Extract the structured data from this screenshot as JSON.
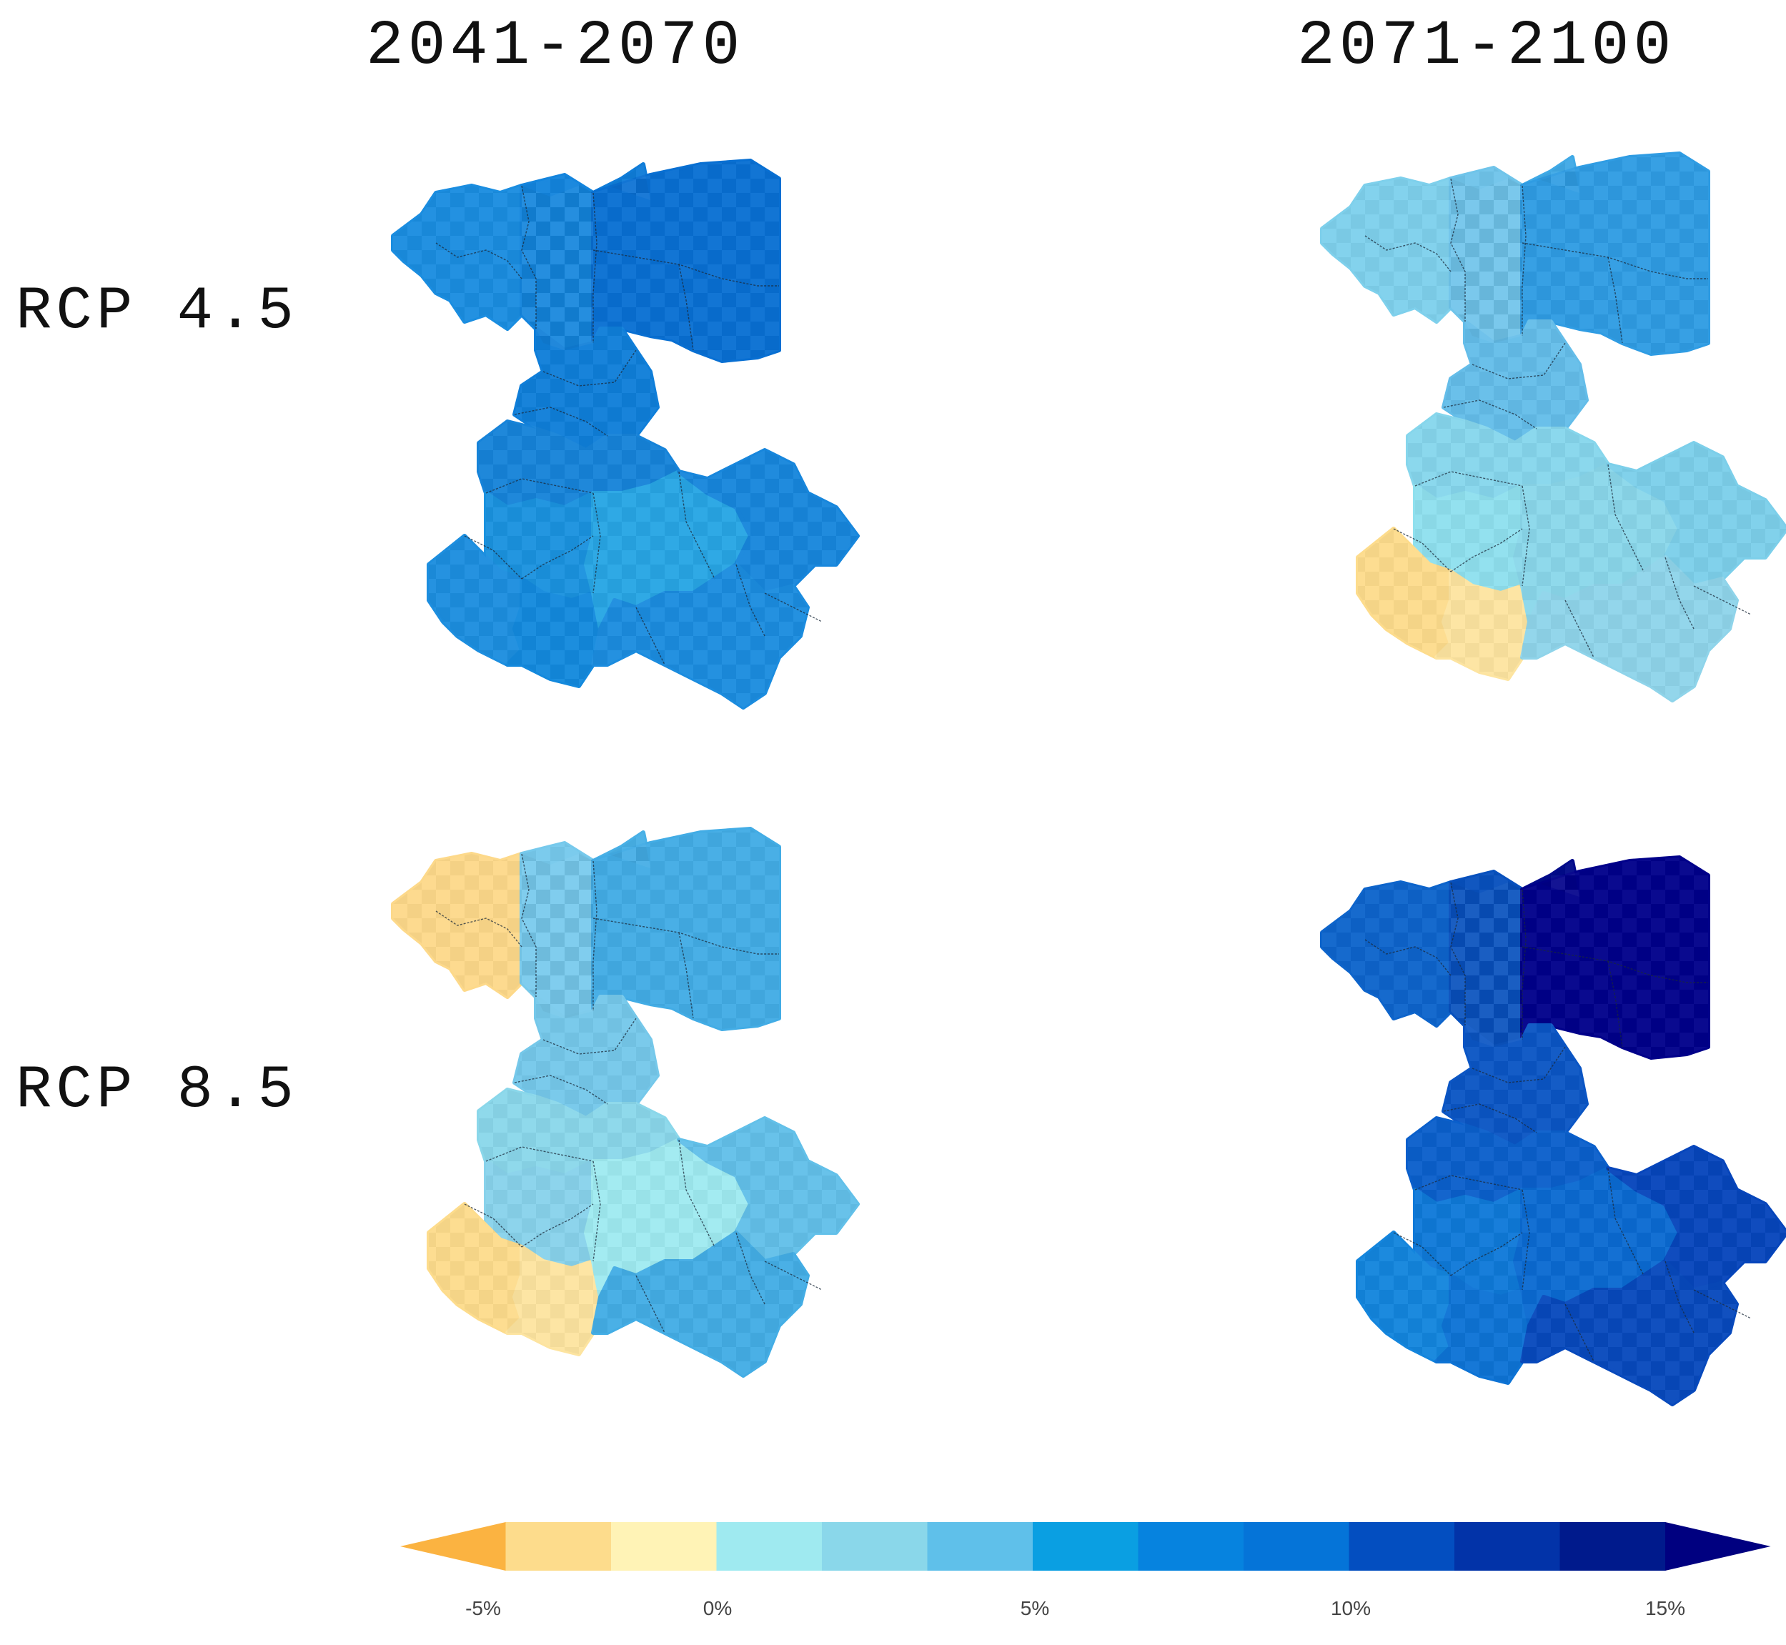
{
  "columns": [
    "2041-2070",
    "2071-2100"
  ],
  "rows": [
    "RCP 4.5",
    "RCP 8.5"
  ],
  "colorbar": {
    "bins": [
      "#fbb341",
      "#fddc8c",
      "#fff3b6",
      "#9feaf0",
      "#8ad7ea",
      "#5fc0ea",
      "#0a9fe2",
      "#0683df",
      "#0574d8",
      "#034ec0",
      "#0233a8",
      "#001a8c",
      "#000080"
    ],
    "ticks": [
      "-5%",
      "0%",
      "5%",
      "10%",
      "15%"
    ],
    "tick_values": [
      -5,
      0,
      5,
      10,
      15
    ],
    "range": [
      -7.5,
      17.5
    ],
    "extend": "both"
  },
  "panels": [
    {
      "name": "panel-rcp45-2041-2070",
      "scenario": "RCP 4.5",
      "period": "2041-2070",
      "colors": [
        "#1a8de0",
        "#1384dd",
        "#0f7cd8",
        "#086fd2",
        "#0f7ed9",
        "#1683d9",
        "#1a92df",
        "#1c8edf",
        "#1389dd",
        "#27a5e4",
        "#1786dc",
        "#1b8cdf"
      ]
    },
    {
      "name": "panel-rcp45-2071-2100",
      "scenario": "RCP 4.5",
      "period": "2071-2100",
      "colors": [
        "#7ed0ec",
        "#6fc4ea",
        "#3fa9e6",
        "#2f9ce3",
        "#64bde9",
        "#86d6ec",
        "#8fe0ee",
        "#fddc8c",
        "#fde4a0",
        "#8ad7ea",
        "#7ccfea",
        "#8fd4ea"
      ]
    },
    {
      "name": "panel-rcp85-2041-2070",
      "scenario": "RCP 8.5",
      "period": "2041-2070",
      "colors": [
        "#fdd98a",
        "#76c9ec",
        "#48b0e6",
        "#42ace5",
        "#75c8ea",
        "#8ad7ea",
        "#88d2eb",
        "#fddc8c",
        "#fde4a0",
        "#9feaf0",
        "#62c0e9",
        "#43ade5"
      ]
    },
    {
      "name": "panel-rcp85-2071-2100",
      "scenario": "RCP 8.5",
      "period": "2071-2100",
      "colors": [
        "#0d64cb",
        "#0750bd",
        "#010a8a",
        "#00008a",
        "#0a55c4",
        "#0a5fcb",
        "#0f79d8",
        "#1385dd",
        "#0d73d5",
        "#0a6ad1",
        "#0645bb",
        "#0749bc"
      ]
    }
  ]
}
